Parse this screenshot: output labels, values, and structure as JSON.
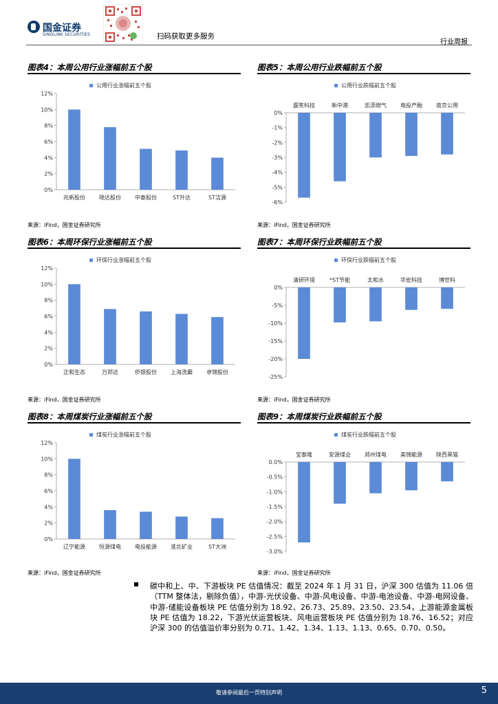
{
  "header": {
    "logo_cn": "国金证券",
    "logo_en": "SINOLINK SECURITIES",
    "qr_caption": "扫码获取更多服务",
    "report_type": "行业周报"
  },
  "figures": [
    {
      "title": "图表4：本周公用行业涨幅前五个股",
      "source": "来源：iFind，国金证券研究所",
      "chart_data": {
        "type": "bar",
        "legend": "公用行业涨幅前五个股",
        "categories": [
          "兆新股份",
          "晓达股份",
          "中泰股份",
          "ST升达",
          "ST洁源"
        ],
        "values": [
          10.0,
          7.8,
          5.1,
          4.9,
          4.0
        ],
        "yticks": [
          "0%",
          "2%",
          "4%",
          "6%",
          "8%",
          "10%",
          "12%"
        ],
        "ylim": [
          0,
          12
        ]
      }
    },
    {
      "title": "图表5：本周公用行业跌幅前五个股",
      "source": "来源：iFind，国金证券研究所",
      "chart_data": {
        "type": "bar",
        "legend": "公用行业跌幅前五个股",
        "categories": [
          "露笑科技",
          "新中港",
          "凯添燃气",
          "电投产融",
          "南京公用"
        ],
        "values": [
          -5.7,
          -4.6,
          -3.0,
          -2.9,
          -2.8
        ],
        "yticks": [
          "-6%",
          "-5%",
          "-4%",
          "-3%",
          "-2%",
          "-1%",
          "0%"
        ],
        "ylim": [
          -6,
          0
        ]
      }
    },
    {
      "title": "图表6：本周环保行业涨幅前五个股",
      "source": "来源：iFind，国金证券研究所",
      "chart_data": {
        "type": "bar",
        "legend": "环保行业涨幅前五个股",
        "categories": [
          "正和生态",
          "万邦达",
          "侨银股份",
          "上海洗霸",
          "卓锦股份"
        ],
        "values": [
          10.0,
          6.9,
          6.6,
          6.3,
          5.9
        ],
        "yticks": [
          "0%",
          "2%",
          "4%",
          "6%",
          "8%",
          "10%",
          "12%"
        ],
        "ylim": [
          0,
          12
        ]
      }
    },
    {
      "title": "图表7：本周环保行业跌幅前五个股",
      "source": "来源：iFind，国金证券研究所",
      "chart_data": {
        "type": "bar",
        "legend": "环保行业跌幅前五个股",
        "categories": [
          "清研环境",
          "*ST节能",
          "太和水",
          "华宏科技",
          "博世科"
        ],
        "values": [
          -20.0,
          -9.8,
          -9.5,
          -6.3,
          -6.0
        ],
        "yticks": [
          "-25%",
          "-20%",
          "-15%",
          "-10%",
          "-5%",
          "0%"
        ],
        "ylim": [
          -25,
          0
        ]
      }
    },
    {
      "title": "图表8：本周煤炭行业涨幅前五个股",
      "source": "来源：iFind，国金证券研究所",
      "chart_data": {
        "type": "bar",
        "legend": "煤炭行业涨幅前五个股",
        "categories": [
          "辽宁能源",
          "恒源煤电",
          "电投能源",
          "淮北矿业",
          "ST大洲"
        ],
        "values": [
          10.0,
          3.6,
          3.4,
          2.8,
          2.6
        ],
        "yticks": [
          "0%",
          "2%",
          "4%",
          "6%",
          "8%",
          "10%",
          "12%"
        ],
        "ylim": [
          0,
          12
        ]
      }
    },
    {
      "title": "图表9：本周煤炭行业跌幅前五个股",
      "source": "来源：iFind，国金证券研究所",
      "chart_data": {
        "type": "bar",
        "legend": "煤炭行业跌幅前五个股",
        "categories": [
          "宝泰隆",
          "安源煤业",
          "郑州煤电",
          "美锦能源",
          "陕西黑猫"
        ],
        "values": [
          -2.7,
          -1.4,
          -1.05,
          -0.95,
          -0.65
        ],
        "yticks": [
          "-3.0%",
          "-2.5%",
          "-2.0%",
          "-1.5%",
          "-1.0%",
          "-0.5%",
          "0.0%"
        ],
        "ylim": [
          -3,
          0
        ]
      }
    }
  ],
  "bullet_text": "碳中和上、中、下游板块 PE 估值情况：截至 2024 年 1 月 31 日，沪深 300 估值为 11.06 倍（TTM 整体法，剔除负值），中游-光伏设备、中游-风电设备、中游-电池设备、中游-电网设备、中游-储能设备板块 PE 估值分别为 18.92、26.73、25.89、23.50、23.54，上游能源金属板块 PE 估值为 18.22，下游光伏运营板块、风电运营板块 PE 估值分别为 18.76、16.52；对应沪深 300 的估值溢价率分别为 0.71、1.42、1.34、1.13、1.13、0.65、0.70、0.50。",
  "footer": {
    "disclaimer": "敬请参阅最后一页特别声明",
    "page_number": "5"
  },
  "colors": {
    "bar": "#5b8ad6",
    "footer": "#1a3e6f",
    "brand": "#0b3a6b"
  }
}
